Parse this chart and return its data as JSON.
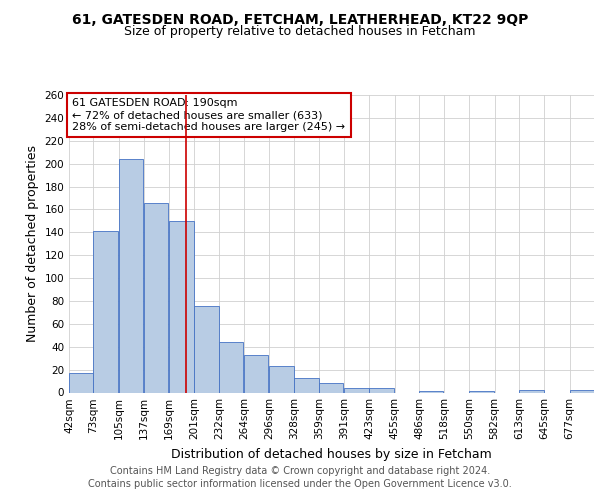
{
  "title1": "61, GATESDEN ROAD, FETCHAM, LEATHERHEAD, KT22 9QP",
  "title2": "Size of property relative to detached houses in Fetcham",
  "xlabel": "Distribution of detached houses by size in Fetcham",
  "ylabel": "Number of detached properties",
  "footer1": "Contains HM Land Registry data © Crown copyright and database right 2024.",
  "footer2": "Contains public sector information licensed under the Open Government Licence v3.0.",
  "bins": [
    42,
    73,
    105,
    137,
    169,
    201,
    232,
    264,
    296,
    328,
    359,
    391,
    423,
    455,
    486,
    518,
    550,
    582,
    613,
    645,
    677
  ],
  "counts": [
    17,
    141,
    204,
    166,
    150,
    76,
    44,
    33,
    23,
    13,
    8,
    4,
    4,
    0,
    1,
    0,
    1,
    0,
    2,
    0,
    2
  ],
  "bar_color": "#b8cce4",
  "bar_edge_color": "#4472c4",
  "red_line_x": 190,
  "ann_line1": "61 GATESDEN ROAD: 190sqm",
  "ann_line2": "← 72% of detached houses are smaller (633)",
  "ann_line3": "28% of semi-detached houses are larger (245) →",
  "annotation_box_color": "#ffffff",
  "annotation_box_edge_color": "#cc0000",
  "ylim": [
    0,
    260
  ],
  "yticks": [
    0,
    20,
    40,
    60,
    80,
    100,
    120,
    140,
    160,
    180,
    200,
    220,
    240,
    260
  ],
  "background_color": "#ffffff",
  "grid_color": "#d0d0d0",
  "title_fontsize": 10,
  "subtitle_fontsize": 9,
  "axis_label_fontsize": 9,
  "tick_fontsize": 7.5,
  "footer_fontsize": 7,
  "ann_fontsize": 8
}
